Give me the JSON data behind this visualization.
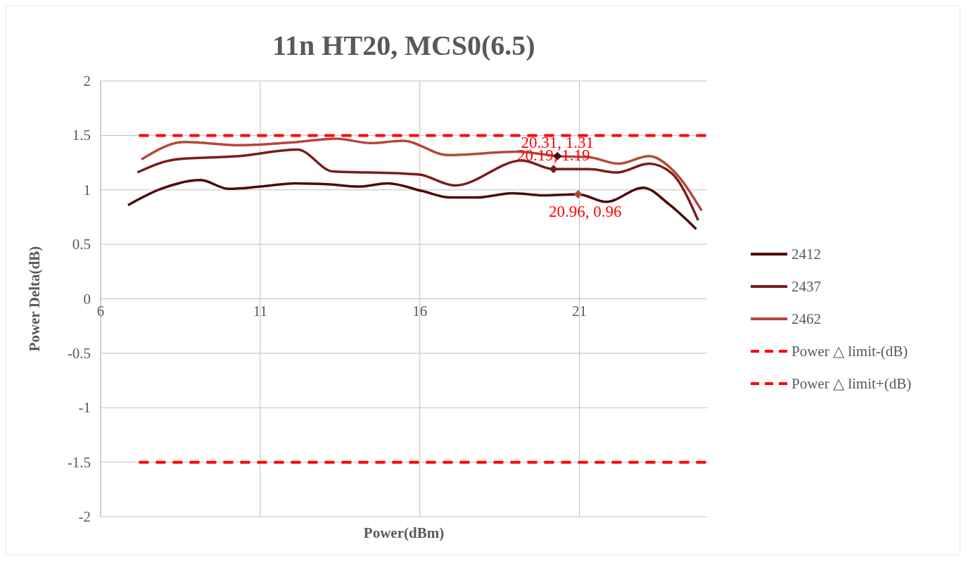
{
  "chart_data": {
    "type": "line",
    "title": "11n HT20, MCS0(6.5)",
    "xlabel": "Power(dBm)",
    "ylabel": "Power Delta(dB)",
    "xlim": [
      6,
      25
    ],
    "xticks": [
      6,
      11,
      16,
      21
    ],
    "ylim": [
      -2,
      2
    ],
    "yticks": [
      -2,
      -1.5,
      -1,
      -0.5,
      0,
      0.5,
      1,
      1.5,
      2
    ],
    "grid": true,
    "legend": "right",
    "series": [
      {
        "name": "2412",
        "color": "#4d0a0a",
        "x": [
          6.86,
          7.9,
          9.13,
          10.0,
          11,
          12.1,
          13.2,
          14.1,
          15.0,
          16.07,
          16.95,
          17.8,
          18.9,
          19.9,
          20.96,
          21.84,
          23.0,
          23.8,
          24.66
        ],
        "values": [
          0.86,
          1.01,
          1.09,
          1.01,
          1.03,
          1.06,
          1.05,
          1.03,
          1.06,
          0.99,
          0.93,
          0.93,
          0.97,
          0.95,
          0.96,
          0.89,
          1.02,
          0.87,
          0.64
        ]
      },
      {
        "name": "2437",
        "color": "#7a1c1c",
        "x": [
          7.15,
          8.36,
          10.34,
          12.17,
          13.27,
          15.47,
          16,
          17.1,
          19.2,
          20.19,
          21.3,
          22.17,
          23.18,
          23.9,
          24.72
        ],
        "values": [
          1.16,
          1.28,
          1.31,
          1.37,
          1.17,
          1.15,
          1.14,
          1.04,
          1.27,
          1.19,
          1.19,
          1.16,
          1.24,
          1.15,
          0.72
        ]
      },
      {
        "name": "2462",
        "color": "#b5483a",
        "x": [
          7.28,
          8.64,
          10.34,
          12.17,
          13.36,
          14.46,
          15.47,
          16.88,
          19.08,
          20.31,
          21.29,
          22.23,
          23.18,
          23.93,
          24.83
        ],
        "values": [
          1.28,
          1.44,
          1.41,
          1.44,
          1.47,
          1.43,
          1.45,
          1.32,
          1.35,
          1.31,
          1.3,
          1.24,
          1.31,
          1.18,
          0.81
        ]
      },
      {
        "name": "Power △ limit-(dB)",
        "color": "#ff0000",
        "line_style": "dashed",
        "x": [
          7.2,
          25
        ],
        "values": [
          -1.5,
          -1.5
        ]
      },
      {
        "name": "Power △ limit+(dB)",
        "color": "#ff0000",
        "line_style": "dashed",
        "x": [
          7.2,
          25
        ],
        "values": [
          1.5,
          1.5
        ]
      }
    ],
    "annotations": [
      {
        "text": "20.31, 1.31",
        "x": 20.31,
        "y": 1.31
      },
      {
        "text": "20.19, 1.19",
        "x": 20.19,
        "y": 1.19
      },
      {
        "text": "20.96, 0.96",
        "x": 20.96,
        "y": 0.96
      }
    ]
  }
}
